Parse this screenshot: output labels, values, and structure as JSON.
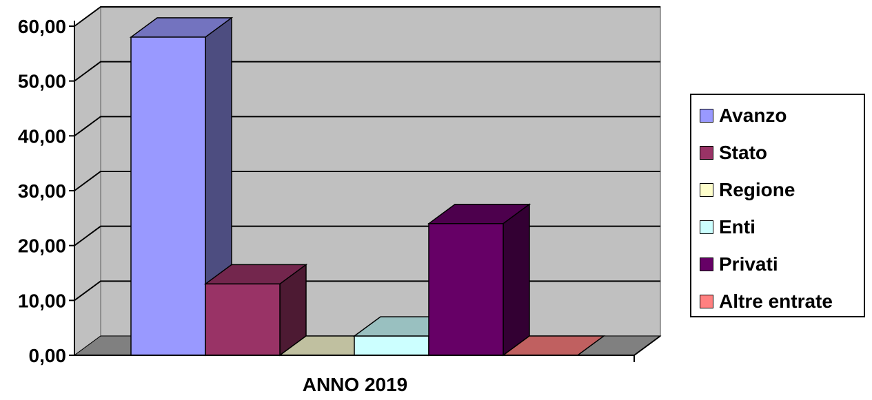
{
  "chart_data": {
    "type": "bar",
    "categories": [
      "ANNO 2019"
    ],
    "series": [
      {
        "name": "Avanzo",
        "values": [
          58.0
        ],
        "color": "#9999ff",
        "side": "#4d4d80",
        "top": "#7373bf"
      },
      {
        "name": "Stato",
        "values": [
          13.0
        ],
        "color": "#993366",
        "side": "#4d1a33",
        "top": "#73264d"
      },
      {
        "name": "Regione",
        "values": [
          0.0
        ],
        "color": "#ffffcc",
        "side": "#808066",
        "top": "#c0c0a0"
      },
      {
        "name": "Enti",
        "values": [
          3.5
        ],
        "color": "#ccffff",
        "side": "#668080",
        "top": "#99c0c0"
      },
      {
        "name": "Privati",
        "values": [
          24.0
        ],
        "color": "#660066",
        "side": "#330033",
        "top": "#4d004d"
      },
      {
        "name": "Altre entrate",
        "values": [
          0.0
        ],
        "color": "#ff8080",
        "side": "#804040",
        "top": "#c06060"
      }
    ],
    "yticks": [
      "0,00",
      "10,00",
      "20,00",
      "30,00",
      "40,00",
      "50,00",
      "60,00"
    ],
    "ylim": [
      0,
      60
    ],
    "grid": true,
    "legend_position": "right",
    "title": "",
    "xlabel": "",
    "ylabel": ""
  }
}
